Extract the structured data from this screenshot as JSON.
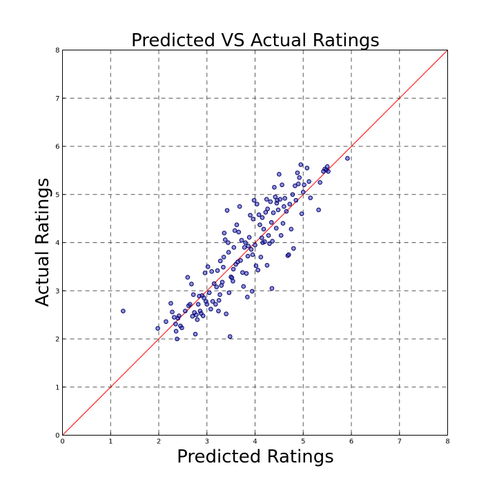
{
  "chart_data": {
    "type": "scatter",
    "title": "Predicted VS Actual Ratings",
    "xlabel": "Predicted Ratings",
    "ylabel": "Actual Ratings",
    "xlim": [
      0,
      8
    ],
    "ylim": [
      0,
      8
    ],
    "xticks": [
      "0",
      "1",
      "2",
      "3",
      "4",
      "5",
      "6",
      "7",
      "8"
    ],
    "yticks": [
      "0",
      "1",
      "2",
      "3",
      "4",
      "5",
      "6",
      "7",
      "8"
    ],
    "grid": true,
    "colors": {
      "points": "#3333bb",
      "point_edge": "#000066",
      "reference_line": "#ff0000"
    },
    "reference_line": {
      "from": [
        0,
        0
      ],
      "to": [
        8,
        8
      ]
    },
    "points": [
      [
        1.26,
        2.58
      ],
      [
        1.98,
        2.22
      ],
      [
        2.15,
        2.36
      ],
      [
        2.25,
        2.74
      ],
      [
        2.28,
        2.56
      ],
      [
        2.32,
        2.45
      ],
      [
        2.35,
        2.31
      ],
      [
        2.36,
        2.16
      ],
      [
        2.38,
        2.0
      ],
      [
        2.4,
        2.43
      ],
      [
        2.42,
        2.48
      ],
      [
        2.45,
        2.27
      ],
      [
        2.48,
        2.23
      ],
      [
        2.55,
        2.58
      ],
      [
        2.6,
        3.28
      ],
      [
        2.62,
        2.69
      ],
      [
        2.65,
        2.72
      ],
      [
        2.68,
        3.14
      ],
      [
        2.7,
        2.47
      ],
      [
        2.72,
        2.92
      ],
      [
        2.74,
        2.55
      ],
      [
        2.76,
        2.1
      ],
      [
        2.78,
        2.5
      ],
      [
        2.8,
        2.4
      ],
      [
        2.82,
        2.72
      ],
      [
        2.84,
        2.89
      ],
      [
        2.86,
        2.58
      ],
      [
        2.88,
        2.53
      ],
      [
        2.9,
        2.9
      ],
      [
        2.92,
        2.48
      ],
      [
        2.94,
        2.85
      ],
      [
        2.96,
        3.37
      ],
      [
        2.98,
        2.78
      ],
      [
        3.0,
        2.72
      ],
      [
        3.02,
        3.5
      ],
      [
        3.05,
        2.96
      ],
      [
        3.08,
        2.62
      ],
      [
        3.1,
        3.4
      ],
      [
        3.12,
        2.78
      ],
      [
        3.15,
        3.15
      ],
      [
        3.18,
        2.72
      ],
      [
        3.2,
        3.08
      ],
      [
        3.22,
        3.42
      ],
      [
        3.24,
        2.58
      ],
      [
        3.25,
        2.8
      ],
      [
        3.27,
        2.92
      ],
      [
        3.28,
        3.62
      ],
      [
        3.3,
        3.11
      ],
      [
        3.32,
        3.18
      ],
      [
        3.34,
        3.49
      ],
      [
        3.35,
        3.7
      ],
      [
        3.36,
        4.2
      ],
      [
        3.38,
        4.06
      ],
      [
        3.4,
        2.52
      ],
      [
        3.42,
        4.67
      ],
      [
        3.44,
        4.0
      ],
      [
        3.45,
        3.8
      ],
      [
        3.46,
        2.96
      ],
      [
        3.48,
        2.05
      ],
      [
        3.5,
        3.29
      ],
      [
        3.52,
        3.27
      ],
      [
        3.54,
        3.2
      ],
      [
        3.55,
        3.45
      ],
      [
        3.56,
        3.9
      ],
      [
        3.58,
        4.25
      ],
      [
        3.6,
        3.55
      ],
      [
        3.62,
        4.37
      ],
      [
        3.64,
        3.6
      ],
      [
        3.66,
        4.22
      ],
      [
        3.68,
        4.75
      ],
      [
        3.7,
        3.63
      ],
      [
        3.72,
        4.05
      ],
      [
        3.74,
        3.38
      ],
      [
        3.76,
        3.09
      ],
      [
        3.78,
        3.9
      ],
      [
        3.8,
        4.0
      ],
      [
        3.82,
        3.36
      ],
      [
        3.84,
        2.87
      ],
      [
        3.85,
        3.72
      ],
      [
        3.86,
        3.93
      ],
      [
        3.88,
        4.11
      ],
      [
        3.9,
        4.57
      ],
      [
        3.92,
        3.86
      ],
      [
        3.94,
        2.99
      ],
      [
        3.95,
        3.75
      ],
      [
        3.96,
        4.49
      ],
      [
        3.98,
        4.88
      ],
      [
        4.0,
        3.95
      ],
      [
        4.02,
        3.52
      ],
      [
        4.04,
        4.8
      ],
      [
        4.06,
        3.43
      ],
      [
        4.08,
        4.58
      ],
      [
        4.1,
        4.37
      ],
      [
        4.12,
        3.7
      ],
      [
        4.14,
        4.1
      ],
      [
        4.15,
        4.52
      ],
      [
        4.16,
        4.0
      ],
      [
        4.18,
        4.28
      ],
      [
        4.2,
        4.02
      ],
      [
        4.22,
        4.63
      ],
      [
        4.24,
        4.9
      ],
      [
        4.25,
        3.53
      ],
      [
        4.26,
        4.7
      ],
      [
        4.28,
        4.15
      ],
      [
        4.3,
        3.98
      ],
      [
        4.32,
        4.85
      ],
      [
        4.34,
        4.42
      ],
      [
        4.35,
        3.05
      ],
      [
        4.36,
        4.03
      ],
      [
        4.38,
        4.62
      ],
      [
        4.4,
        5.15
      ],
      [
        4.42,
        4.95
      ],
      [
        4.44,
        4.3
      ],
      [
        4.45,
        4.82
      ],
      [
        4.46,
        4.88
      ],
      [
        4.48,
        4.68
      ],
      [
        4.5,
        5.42
      ],
      [
        4.52,
        4.9
      ],
      [
        4.54,
        4.15
      ],
      [
        4.56,
        5.2
      ],
      [
        4.58,
        4.4
      ],
      [
        4.6,
        4.75
      ],
      [
        4.62,
        4.92
      ],
      [
        4.65,
        4.65
      ],
      [
        4.68,
        3.73
      ],
      [
        4.7,
        3.75
      ],
      [
        4.72,
        4.8
      ],
      [
        4.75,
        4.28
      ],
      [
        4.78,
        5.0
      ],
      [
        4.8,
        3.88
      ],
      [
        4.83,
        5.18
      ],
      [
        4.85,
        4.88
      ],
      [
        4.88,
        5.45
      ],
      [
        4.9,
        5.22
      ],
      [
        4.92,
        5.35
      ],
      [
        4.95,
        5.62
      ],
      [
        4.97,
        4.6
      ],
      [
        5.0,
        5.05
      ],
      [
        5.02,
        5.2
      ],
      [
        5.08,
        5.55
      ],
      [
        5.12,
        5.27
      ],
      [
        5.15,
        4.93
      ],
      [
        5.32,
        4.68
      ],
      [
        5.35,
        5.25
      ],
      [
        5.42,
        5.48
      ],
      [
        5.45,
        5.53
      ],
      [
        5.48,
        5.51
      ],
      [
        5.5,
        5.58
      ],
      [
        5.52,
        5.48
      ],
      [
        5.92,
        5.75
      ]
    ]
  }
}
